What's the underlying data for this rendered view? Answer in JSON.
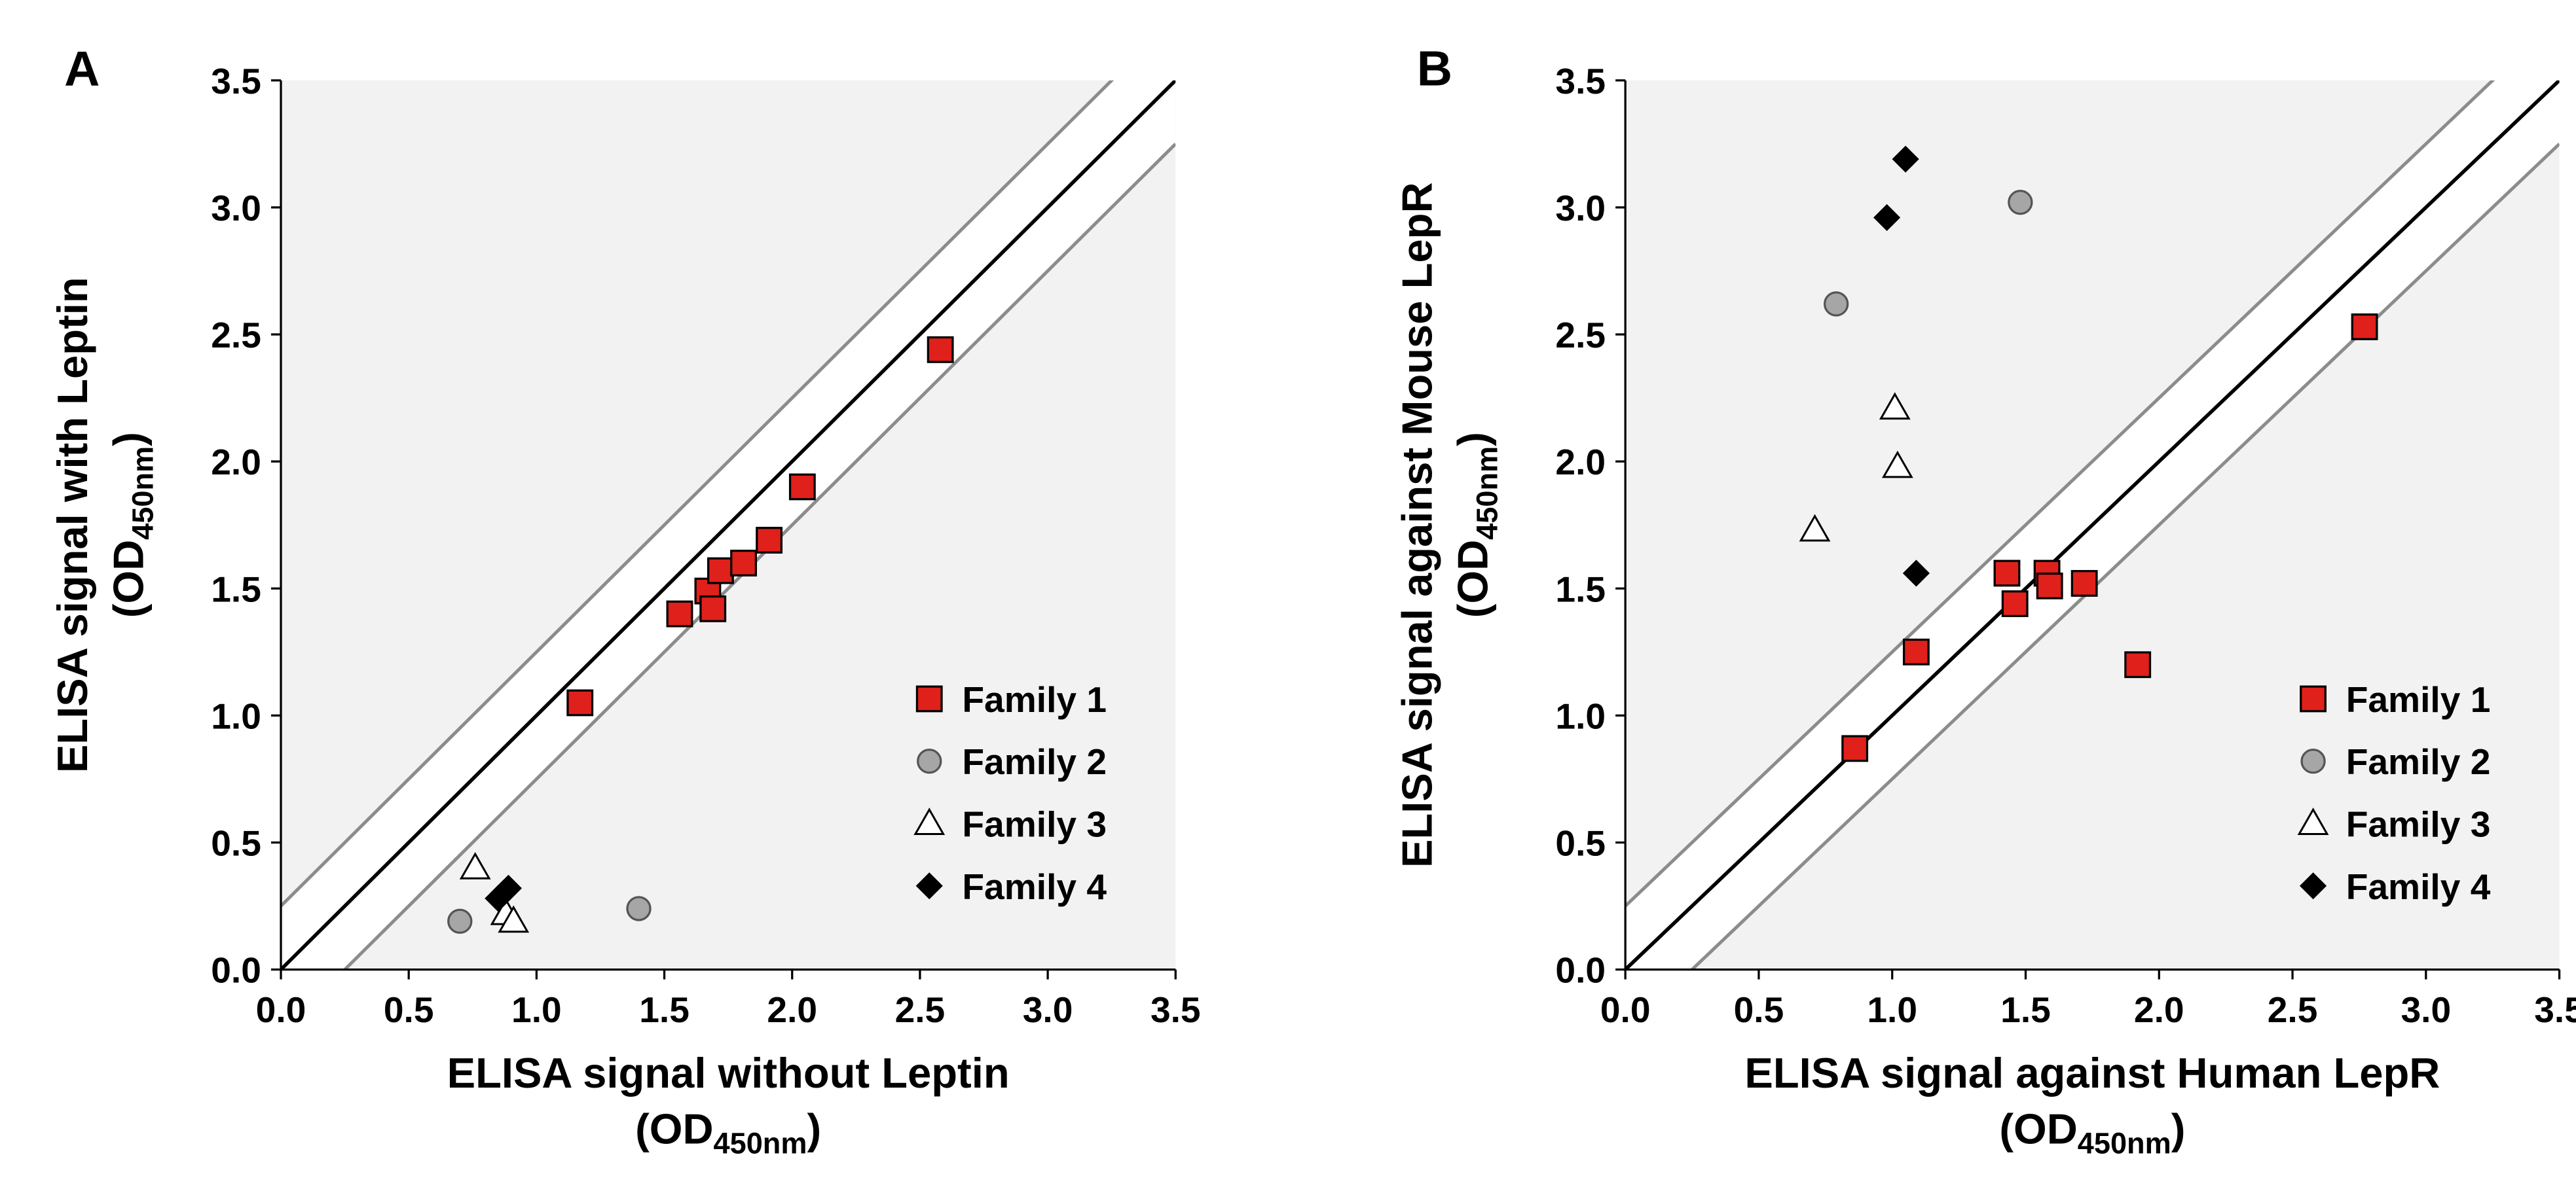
{
  "chart_data": [
    {
      "type": "scatter",
      "panel_label": "A",
      "xlabel": "ELISA signal without Leptin",
      "ylabel": "ELISA signal with Leptin",
      "x_unit_prefix": "(OD",
      "x_unit_sub": "450nm",
      "x_unit_suffix": ")",
      "y_unit_prefix": "(OD",
      "y_unit_sub": "450nm",
      "y_unit_suffix": ")",
      "xlim": [
        0,
        3.5
      ],
      "ylim": [
        0,
        3.5
      ],
      "xticks": [
        "0.0",
        "0.5",
        "1.0",
        "1.5",
        "2.0",
        "2.5",
        "3.0",
        "3.5"
      ],
      "yticks": [
        "0.0",
        "0.5",
        "1.0",
        "1.5",
        "2.0",
        "2.5",
        "3.0",
        "3.5"
      ],
      "reference_lines": [
        {
          "name": "identity",
          "offset": 0,
          "color": "#000000"
        },
        {
          "name": "upper-bound",
          "offset": 0.25,
          "color": "#8c8c8c"
        },
        {
          "name": "lower-bound",
          "offset": -0.25,
          "color": "#8c8c8c"
        }
      ],
      "legend_position": "bottom-right",
      "series": [
        {
          "name": "Family 1",
          "marker": "square",
          "color": "#e0201b",
          "points": [
            [
              1.17,
              1.05
            ],
            [
              1.56,
              1.4
            ],
            [
              1.67,
              1.49
            ],
            [
              1.69,
              1.42
            ],
            [
              1.72,
              1.57
            ],
            [
              1.81,
              1.6
            ],
            [
              1.91,
              1.69
            ],
            [
              2.04,
              1.9
            ],
            [
              2.58,
              2.44
            ]
          ]
        },
        {
          "name": "Family 2",
          "marker": "circle",
          "color": "#a6a6a6",
          "points": [
            [
              0.7,
              0.19
            ],
            [
              1.4,
              0.24
            ]
          ]
        },
        {
          "name": "Family 3",
          "marker": "triangle",
          "color": "#ffffff",
          "points": [
            [
              0.76,
              0.4
            ],
            [
              0.88,
              0.22
            ],
            [
              0.91,
              0.19
            ]
          ]
        },
        {
          "name": "Family 4",
          "marker": "diamond",
          "color": "#000000",
          "points": [
            [
              0.85,
              0.28
            ],
            [
              0.87,
              0.3
            ],
            [
              0.89,
              0.32
            ]
          ]
        }
      ]
    },
    {
      "type": "scatter",
      "panel_label": "B",
      "xlabel": "ELISA signal against Human LepR",
      "ylabel": "ELISA signal against Mouse LepR",
      "x_unit_prefix": "(OD",
      "x_unit_sub": "450nm",
      "x_unit_suffix": ")",
      "y_unit_prefix": "(OD",
      "y_unit_sub": "450nm",
      "y_unit_suffix": ")",
      "xlim": [
        0,
        3.5
      ],
      "ylim": [
        0,
        3.5
      ],
      "xticks": [
        "0.0",
        "0.5",
        "1.0",
        "1.5",
        "2.0",
        "2.5",
        "3.0",
        "3.5"
      ],
      "yticks": [
        "0.0",
        "0.5",
        "1.0",
        "1.5",
        "2.0",
        "2.5",
        "3.0",
        "3.5"
      ],
      "reference_lines": [
        {
          "name": "identity",
          "offset": 0,
          "color": "#000000"
        },
        {
          "name": "upper-bound",
          "offset": 0.25,
          "color": "#8c8c8c"
        },
        {
          "name": "lower-bound",
          "offset": -0.25,
          "color": "#8c8c8c"
        }
      ],
      "legend_position": "bottom-right",
      "series": [
        {
          "name": "Family 1",
          "marker": "square",
          "color": "#e0201b",
          "points": [
            [
              0.86,
              0.87
            ],
            [
              1.09,
              1.25
            ],
            [
              1.43,
              1.56
            ],
            [
              1.46,
              1.44
            ],
            [
              1.58,
              1.56
            ],
            [
              1.59,
              1.51
            ],
            [
              1.72,
              1.52
            ],
            [
              1.92,
              1.2
            ],
            [
              2.77,
              2.53
            ]
          ]
        },
        {
          "name": "Family 2",
          "marker": "circle",
          "color": "#a6a6a6",
          "points": [
            [
              0.79,
              2.62
            ],
            [
              1.48,
              3.02
            ]
          ]
        },
        {
          "name": "Family 3",
          "marker": "triangle",
          "color": "#ffffff",
          "points": [
            [
              0.71,
              1.73
            ],
            [
              1.01,
              2.21
            ],
            [
              1.02,
              1.98
            ]
          ]
        },
        {
          "name": "Family 4",
          "marker": "diamond",
          "color": "#000000",
          "points": [
            [
              0.98,
              2.96
            ],
            [
              1.05,
              3.19
            ],
            [
              1.09,
              1.56
            ]
          ]
        }
      ]
    }
  ]
}
